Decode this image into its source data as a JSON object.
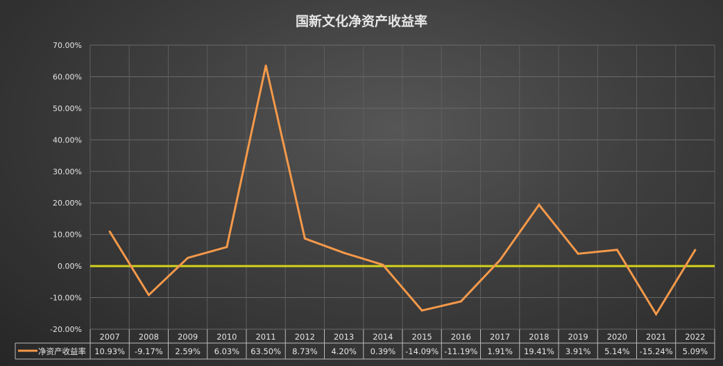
{
  "chart_data": {
    "type": "line",
    "title": "国新文化净资产收益率",
    "categories": [
      "2007",
      "2008",
      "2009",
      "2010",
      "2011",
      "2012",
      "2013",
      "2014",
      "2015",
      "2016",
      "2017",
      "2018",
      "2019",
      "2020",
      "2021",
      "2022"
    ],
    "series": [
      {
        "name": "净资产收益率",
        "values": [
          10.93,
          -9.17,
          2.59,
          6.03,
          63.5,
          8.73,
          4.2,
          0.39,
          -14.09,
          -11.19,
          1.91,
          19.41,
          3.91,
          5.14,
          -15.24,
          5.09
        ],
        "labels": [
          "10.93%",
          "-9.17%",
          "2.59%",
          "6.03%",
          "63.50%",
          "8.73%",
          "4.20%",
          "0.39%",
          "-14.09%",
          "-11.19%",
          "1.91%",
          "19.41%",
          "3.91%",
          "5.14%",
          "-15.24%",
          "5.09%"
        ],
        "color": "#f5994a"
      }
    ],
    "yticks": [
      "70.00%",
      "60.00%",
      "50.00%",
      "40.00%",
      "30.00%",
      "20.00%",
      "10.00%",
      "0.00%",
      "-10.00%",
      "-20.00%"
    ],
    "ylim": [
      -20,
      70
    ],
    "grid": true,
    "legend": "data-table",
    "zero_line_color": "#d4d41c"
  }
}
